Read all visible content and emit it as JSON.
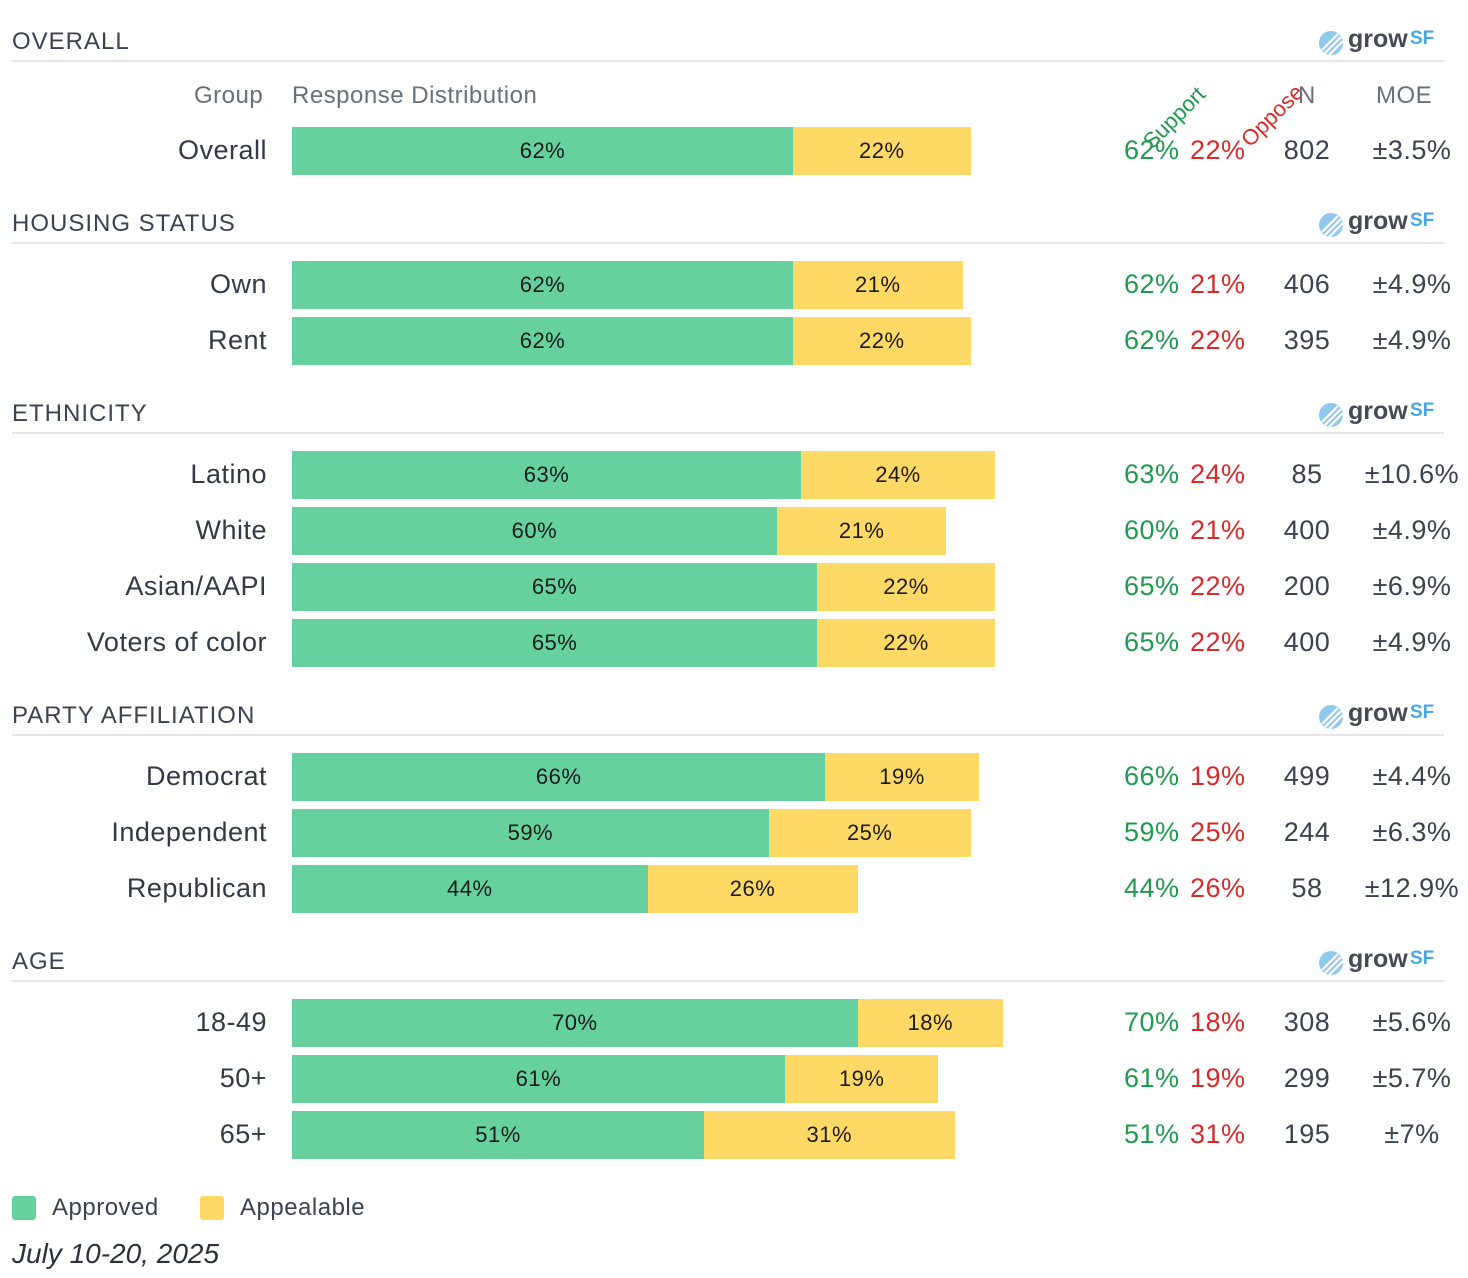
{
  "header": {
    "group_label": "Group",
    "distribution_label": "Response Distribution",
    "support_label": "Support",
    "oppose_label": "Oppose",
    "n_label": "N",
    "moe_label": "MOE"
  },
  "logo": {
    "word1": "grow",
    "word2": "SF"
  },
  "colors": {
    "approved": "#66d19e",
    "appealable": "#ffd966",
    "support_text": "#1f9a4f",
    "oppose_text": "#d62b2b"
  },
  "legend": [
    {
      "label": "Approved",
      "color": "#66d19e"
    },
    {
      "label": "Appealable",
      "color": "#ffd966"
    }
  ],
  "date_label": "July 10-20, 2025",
  "chart_data": {
    "type": "bar",
    "orientation": "horizontal-stacked",
    "series_names": [
      "Approved",
      "Appealable"
    ],
    "sections": [
      {
        "title": "OVERALL",
        "rows": [
          {
            "group": "Overall",
            "approved": 62,
            "appealable": 22,
            "support": "62%",
            "oppose": "22%",
            "n": "802",
            "moe": "±3.5%"
          }
        ]
      },
      {
        "title": "HOUSING STATUS",
        "rows": [
          {
            "group": "Own",
            "approved": 62,
            "appealable": 21,
            "support": "62%",
            "oppose": "21%",
            "n": "406",
            "moe": "±4.9%"
          },
          {
            "group": "Rent",
            "approved": 62,
            "appealable": 22,
            "support": "62%",
            "oppose": "22%",
            "n": "395",
            "moe": "±4.9%"
          }
        ]
      },
      {
        "title": "ETHNICITY",
        "rows": [
          {
            "group": "Latino",
            "approved": 63,
            "appealable": 24,
            "support": "63%",
            "oppose": "24%",
            "n": "85",
            "moe": "±10.6%"
          },
          {
            "group": "White",
            "approved": 60,
            "appealable": 21,
            "support": "60%",
            "oppose": "21%",
            "n": "400",
            "moe": "±4.9%"
          },
          {
            "group": "Asian/AAPI",
            "approved": 65,
            "appealable": 22,
            "support": "65%",
            "oppose": "22%",
            "n": "200",
            "moe": "±6.9%"
          },
          {
            "group": "Voters of color",
            "approved": 65,
            "appealable": 22,
            "support": "65%",
            "oppose": "22%",
            "n": "400",
            "moe": "±4.9%"
          }
        ]
      },
      {
        "title": "PARTY AFFILIATION",
        "rows": [
          {
            "group": "Democrat",
            "approved": 66,
            "appealable": 19,
            "support": "66%",
            "oppose": "19%",
            "n": "499",
            "moe": "±4.4%"
          },
          {
            "group": "Independent",
            "approved": 59,
            "appealable": 25,
            "support": "59%",
            "oppose": "25%",
            "n": "244",
            "moe": "±6.3%"
          },
          {
            "group": "Republican",
            "approved": 44,
            "appealable": 26,
            "support": "44%",
            "oppose": "26%",
            "n": "58",
            "moe": "±12.9%"
          }
        ]
      },
      {
        "title": "AGE",
        "rows": [
          {
            "group": "18-49",
            "approved": 70,
            "appealable": 18,
            "support": "70%",
            "oppose": "18%",
            "n": "308",
            "moe": "±5.6%"
          },
          {
            "group": "50+",
            "approved": 61,
            "appealable": 19,
            "support": "61%",
            "oppose": "19%",
            "n": "299",
            "moe": "±5.7%"
          },
          {
            "group": "65+",
            "approved": 51,
            "appealable": 31,
            "support": "51%",
            "oppose": "31%",
            "n": "195",
            "moe": "±7%"
          }
        ]
      }
    ]
  }
}
